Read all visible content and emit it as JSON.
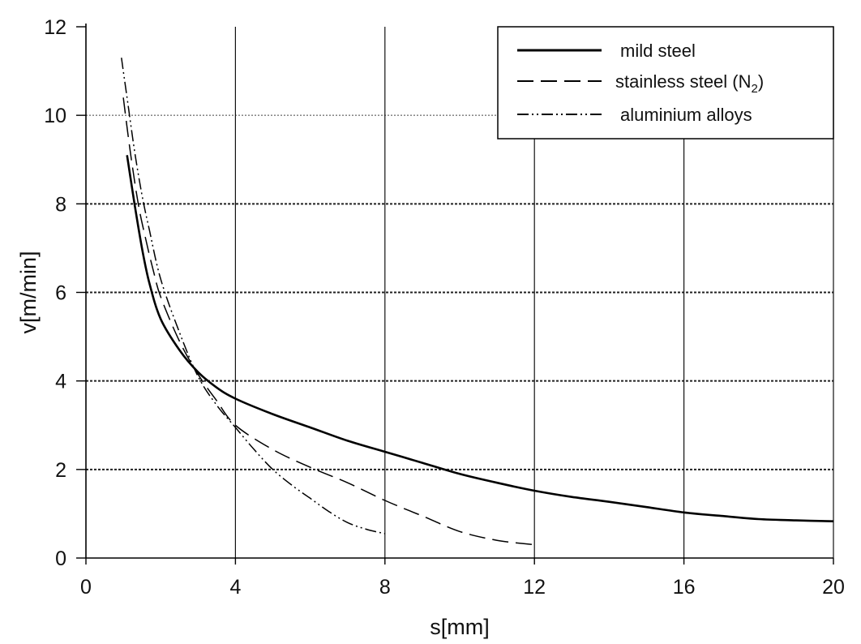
{
  "chart_data": {
    "type": "line",
    "xlabel": "s[mm]",
    "ylabel": "v[m/min]",
    "xlim": [
      0,
      20
    ],
    "ylim": [
      0,
      12
    ],
    "xticks": [
      0,
      4,
      8,
      12,
      16,
      20
    ],
    "yticks": [
      0,
      2,
      4,
      6,
      8,
      10,
      12
    ],
    "grid": {
      "vertical_solid_at": [
        4,
        8,
        12,
        16,
        20
      ],
      "horizontal_dotted_at": [
        2,
        4,
        6,
        8
      ],
      "horizontal_thin_at": [
        10
      ]
    },
    "legend_position": "top-right",
    "series": [
      {
        "name": "mild steel",
        "style": "solid",
        "color": "#000000",
        "x": [
          1.1,
          1.3,
          1.5,
          1.7,
          2.0,
          2.5,
          3.0,
          3.5,
          4.0,
          5.0,
          6.0,
          7.0,
          8.0,
          9.0,
          10.0,
          11.0,
          12.0,
          13.0,
          14.0,
          15.0,
          16.0,
          17.0,
          18.0,
          19.0,
          20.0
        ],
        "y": [
          9.1,
          8.0,
          7.0,
          6.2,
          5.4,
          4.7,
          4.2,
          3.85,
          3.6,
          3.25,
          2.95,
          2.65,
          2.4,
          2.15,
          1.9,
          1.7,
          1.52,
          1.38,
          1.27,
          1.15,
          1.03,
          0.95,
          0.88,
          0.85,
          0.83
        ]
      },
      {
        "name": "stainless steel (N",
        "name_subscript": "2",
        "name_suffix": ")",
        "style": "dashed",
        "color": "#000000",
        "x": [
          1.0,
          1.2,
          1.4,
          1.6,
          1.8,
          2.0,
          2.5,
          3.0,
          3.5,
          4.0,
          5.0,
          6.0,
          7.0,
          8.0,
          9.0,
          10.0,
          11.0,
          12.0
        ],
        "y": [
          10.4,
          9.1,
          8.0,
          7.2,
          6.5,
          5.9,
          4.9,
          4.15,
          3.55,
          3.0,
          2.45,
          2.05,
          1.7,
          1.3,
          0.95,
          0.6,
          0.4,
          0.3
        ]
      },
      {
        "name": "aluminium alloys",
        "style": "dash-dot-dot",
        "color": "#000000",
        "x": [
          0.95,
          1.1,
          1.3,
          1.5,
          1.7,
          2.0,
          2.5,
          3.0,
          3.5,
          4.0,
          4.5,
          5.0,
          5.5,
          6.0,
          6.5,
          7.0,
          7.5,
          8.0
        ],
        "y": [
          11.3,
          10.4,
          9.2,
          8.2,
          7.4,
          6.3,
          5.1,
          4.1,
          3.45,
          2.95,
          2.45,
          2.0,
          1.65,
          1.35,
          1.05,
          0.8,
          0.65,
          0.55
        ]
      }
    ]
  }
}
